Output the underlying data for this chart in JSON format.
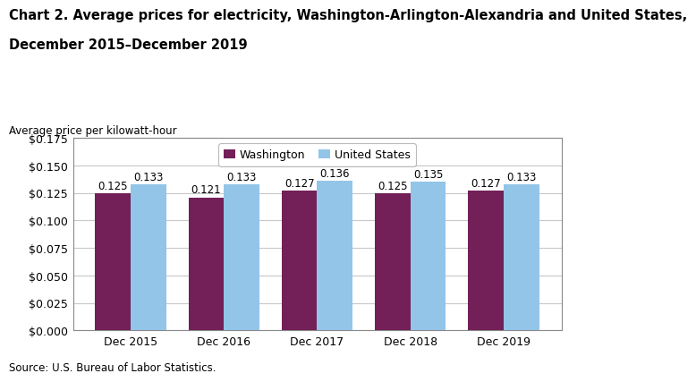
{
  "title_line1": "Chart 2. Average prices for electricity, Washington-Arlington-Alexandria and United States,",
  "title_line2": "December 2015–December 2019",
  "ylabel": "Average price per kilowatt-hour",
  "source": "Source: U.S. Bureau of Labor Statistics.",
  "categories": [
    "Dec 2015",
    "Dec 2016",
    "Dec 2017",
    "Dec 2018",
    "Dec 2019"
  ],
  "washington_values": [
    0.125,
    0.121,
    0.127,
    0.125,
    0.127
  ],
  "us_values": [
    0.133,
    0.133,
    0.136,
    0.135,
    0.133
  ],
  "washington_color": "#722057",
  "us_color": "#92C5E8",
  "ylim": [
    0,
    0.175
  ],
  "yticks": [
    0.0,
    0.025,
    0.05,
    0.075,
    0.1,
    0.125,
    0.15,
    0.175
  ],
  "legend_washington": "Washington",
  "legend_us": "United States",
  "bar_width": 0.38,
  "title_fontsize": 10.5,
  "axis_label_fontsize": 8.5,
  "tick_fontsize": 9,
  "annotation_fontsize": 8.5,
  "legend_fontsize": 9,
  "source_fontsize": 8.5,
  "background_color": "#ffffff",
  "grid_color": "#c8c8c8"
}
